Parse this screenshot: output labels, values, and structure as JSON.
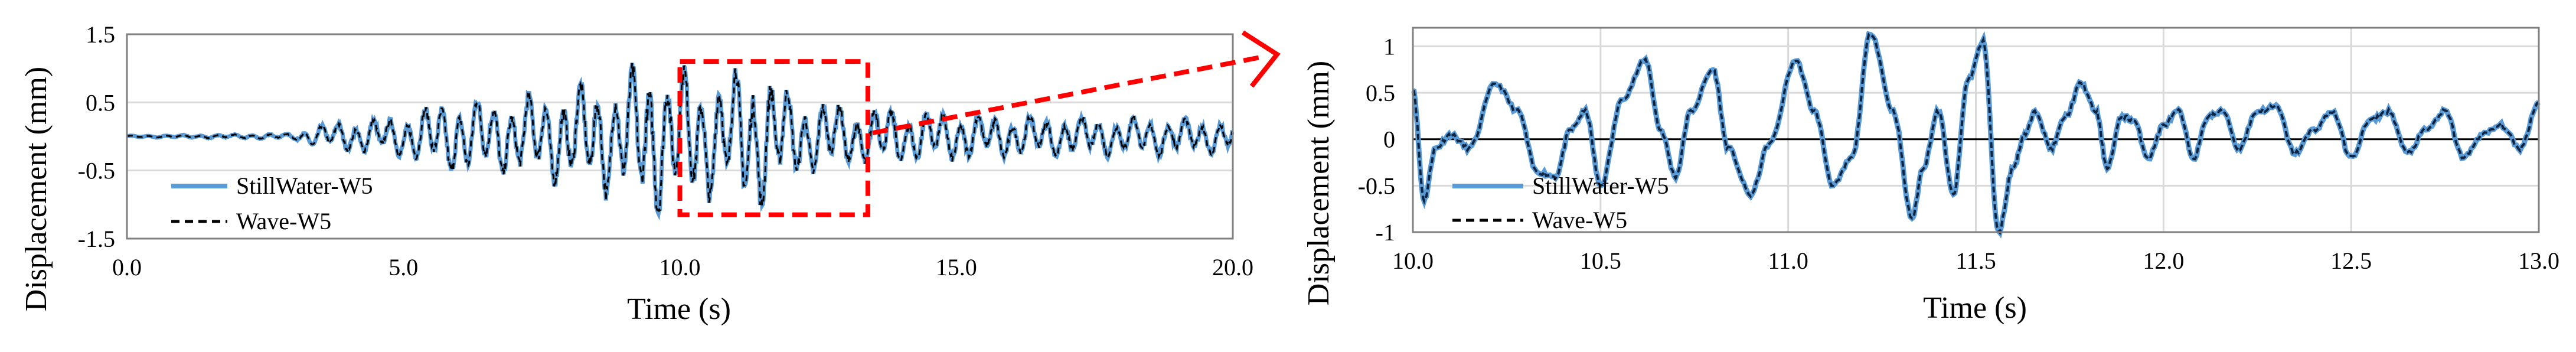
{
  "colors": {
    "still_water": "#5b9bd5",
    "wave": "#000000",
    "highlight": "#ff0000",
    "grid": "#d9d9d9"
  },
  "chart_data": [
    {
      "type": "line",
      "xlabel": "Time (s)",
      "ylabel": "Displacement (mm)",
      "xlim": [
        0,
        20
      ],
      "ylim": [
        -1.5,
        1.5
      ],
      "xticks": [
        "0.0",
        "5.0",
        "10.0",
        "15.0",
        "20.0"
      ],
      "yticks": [
        "1.5",
        "0.5",
        "-0.5",
        "-1.5"
      ],
      "grid": "horizontal",
      "legend_position": "bottom-left",
      "highlight_box": {
        "x": [
          10.0,
          13.4
        ],
        "y": [
          -1.15,
          1.1
        ]
      },
      "series": [
        {
          "name": "StillWater-W5",
          "style": "solid",
          "color": "#5b9bd5"
        },
        {
          "name": "Wave-W5",
          "style": "dashed",
          "color": "#000000"
        }
      ],
      "envelope": {
        "t": [
          0,
          3,
          3.5,
          5,
          5.5,
          6,
          7,
          8,
          9,
          9.5,
          10,
          10.5,
          11,
          11.5,
          12,
          13,
          14,
          15,
          16,
          18,
          20
        ],
        "amp": [
          0.01,
          0.04,
          0.18,
          0.3,
          0.45,
          0.55,
          0.55,
          0.7,
          0.9,
          1.1,
          1.0,
          0.9,
          1.0,
          1.05,
          0.65,
          0.45,
          0.4,
          0.35,
          0.3,
          0.28,
          0.25
        ]
      }
    },
    {
      "type": "line",
      "xlabel": "Time (s)",
      "ylabel": "Displacement (mm)",
      "xlim": [
        10,
        13
      ],
      "ylim": [
        -1,
        1.2
      ],
      "xticks": [
        "10.0",
        "10.5",
        "11.0",
        "11.5",
        "12.0",
        "12.5",
        "13.0"
      ],
      "yticks": [
        "1",
        "0.5",
        "0",
        "-0.5",
        "-1"
      ],
      "grid": "both",
      "legend_position": "bottom-left",
      "series": [
        {
          "name": "StillWater-W5",
          "style": "solid",
          "color": "#5b9bd5",
          "x": [
            10.0,
            10.03,
            10.06,
            10.1,
            10.15,
            10.22,
            10.28,
            10.33,
            10.38,
            10.42,
            10.46,
            10.5,
            10.56,
            10.62,
            10.66,
            10.7,
            10.74,
            10.8,
            10.84,
            10.9,
            10.95,
            11.02,
            11.07,
            11.12,
            11.17,
            11.22,
            11.28,
            11.33,
            11.36,
            11.4,
            11.44,
            11.48,
            11.52,
            11.56,
            11.6,
            11.63,
            11.66,
            11.7,
            11.74,
            11.78,
            11.82,
            11.85,
            11.89,
            11.92,
            11.96,
            12.0,
            12.04,
            12.08,
            12.12,
            12.16,
            12.2,
            12.25,
            12.3,
            12.35,
            12.4,
            12.45,
            12.5,
            12.55,
            12.6,
            12.65,
            12.7,
            12.75,
            12.8,
            12.85,
            12.9,
            12.95,
            13.0
          ],
          "y": [
            0.55,
            -0.65,
            -0.1,
            0.05,
            -0.1,
            0.6,
            0.3,
            -0.35,
            -0.4,
            0.1,
            0.3,
            -0.5,
            0.45,
            0.85,
            0.1,
            -0.4,
            0.3,
            0.75,
            -0.1,
            -0.6,
            -0.05,
            0.85,
            0.3,
            -0.5,
            -0.2,
            1.15,
            0.3,
            -0.85,
            -0.3,
            0.3,
            -0.6,
            0.65,
            1.05,
            -1.0,
            -0.3,
            0.05,
            0.3,
            -0.1,
            0.25,
            0.6,
            0.3,
            -0.3,
            0.25,
            0.2,
            -0.2,
            0.15,
            0.3,
            -0.2,
            0.25,
            0.3,
            -0.1,
            0.3,
            0.35,
            -0.15,
            0.1,
            0.3,
            -0.2,
            0.2,
            0.3,
            -0.15,
            0.1,
            0.3,
            -0.2,
            0.05,
            0.15,
            -0.1,
            0.4
          ]
        },
        {
          "name": "Wave-W5",
          "style": "dashed",
          "color": "#000000",
          "x": [
            10.0,
            10.03,
            10.06,
            10.1,
            10.15,
            10.22,
            10.28,
            10.33,
            10.38,
            10.42,
            10.46,
            10.5,
            10.56,
            10.62,
            10.66,
            10.7,
            10.74,
            10.8,
            10.84,
            10.9,
            10.95,
            11.02,
            11.07,
            11.12,
            11.17,
            11.22,
            11.28,
            11.33,
            11.36,
            11.4,
            11.44,
            11.48,
            11.52,
            11.56,
            11.6,
            11.63,
            11.66,
            11.7,
            11.74,
            11.78,
            11.82,
            11.85,
            11.89,
            11.92,
            11.96,
            12.0,
            12.04,
            12.08,
            12.12,
            12.16,
            12.2,
            12.25,
            12.3,
            12.35,
            12.4,
            12.45,
            12.5,
            12.55,
            12.6,
            12.65,
            12.7,
            12.75,
            12.8,
            12.85,
            12.9,
            12.95,
            13.0
          ],
          "y": [
            0.55,
            -0.65,
            -0.1,
            0.05,
            -0.1,
            0.6,
            0.3,
            -0.35,
            -0.4,
            0.1,
            0.3,
            -0.5,
            0.45,
            0.85,
            0.1,
            -0.4,
            0.3,
            0.75,
            -0.1,
            -0.6,
            -0.05,
            0.85,
            0.3,
            -0.5,
            -0.2,
            1.15,
            0.3,
            -0.85,
            -0.3,
            0.3,
            -0.6,
            0.65,
            1.05,
            -1.0,
            -0.3,
            0.05,
            0.3,
            -0.1,
            0.25,
            0.6,
            0.3,
            -0.3,
            0.25,
            0.2,
            -0.2,
            0.15,
            0.3,
            -0.2,
            0.25,
            0.3,
            -0.1,
            0.3,
            0.35,
            -0.15,
            0.1,
            0.3,
            -0.2,
            0.2,
            0.3,
            -0.15,
            0.1,
            0.3,
            -0.2,
            0.05,
            0.15,
            -0.1,
            0.4
          ]
        }
      ]
    }
  ]
}
